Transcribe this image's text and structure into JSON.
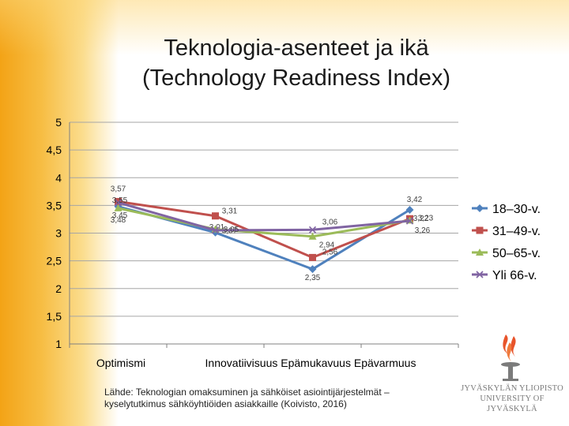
{
  "slide": {
    "title_line1": "Teknologia-asenteet ja ikä",
    "title_line2": "(Technology Readiness Index)",
    "source_line1": "Lähde: Teknologian omaksuminen ja sähköiset asiointijärjestelmät –",
    "source_line2": "kyselytutkimus sähköyhtiöiden asiakkaille (Koivisto, 2016)",
    "logo_line1": "JYVÄSKYLÄN YLIOPISTO",
    "logo_line2": "UNIVERSITY OF JYVÄSKYLÄ"
  },
  "colors": {
    "background_band": "#f5a623",
    "logo_flame": "#e8542b",
    "logo_gray": "#7b7b7b"
  },
  "chart_data": {
    "type": "line",
    "title": "",
    "xlabel": "",
    "ylabel": "",
    "categories": [
      "Optimismi",
      "Innovatiivisuus",
      "Epämukavuus",
      "Epävarmuus"
    ],
    "category_label_line": "Innovatiivisuus Epämukavuus Epävarmuus",
    "ylim": [
      1,
      5
    ],
    "yticks": [
      "1",
      "1,5",
      "2",
      "2,5",
      "3",
      "3,5",
      "4",
      "4,5",
      "5"
    ],
    "grid": true,
    "legend_position": "right",
    "series": [
      {
        "name": "18–30-v.",
        "color": "#4f81bd",
        "marker": "diamond",
        "values": [
          3.48,
          3.01,
          2.35,
          3.42
        ],
        "value_labels": [
          "3,48",
          "3,01",
          "2,35",
          "3,42"
        ]
      },
      {
        "name": "31–49-v.",
        "color": "#c0504d",
        "marker": "square",
        "values": [
          3.57,
          3.31,
          2.56,
          3.26
        ],
        "value_labels": [
          "3,57",
          "3,31",
          "2,56",
          "3,26"
        ]
      },
      {
        "name": "50–65-v.",
        "color": "#9bbb59",
        "marker": "triangle",
        "values": [
          3.45,
          3.07,
          2.94,
          3.23
        ],
        "value_labels": [
          "3,45",
          "3,07",
          "2,94",
          "3,23"
        ]
      },
      {
        "name": "Yli 66-v.",
        "color": "#8064a2",
        "marker": "x",
        "values": [
          3.55,
          3.05,
          3.06,
          3.22
        ],
        "value_labels": [
          "3,55",
          "3,05",
          "3,06",
          "3,22"
        ]
      }
    ]
  }
}
